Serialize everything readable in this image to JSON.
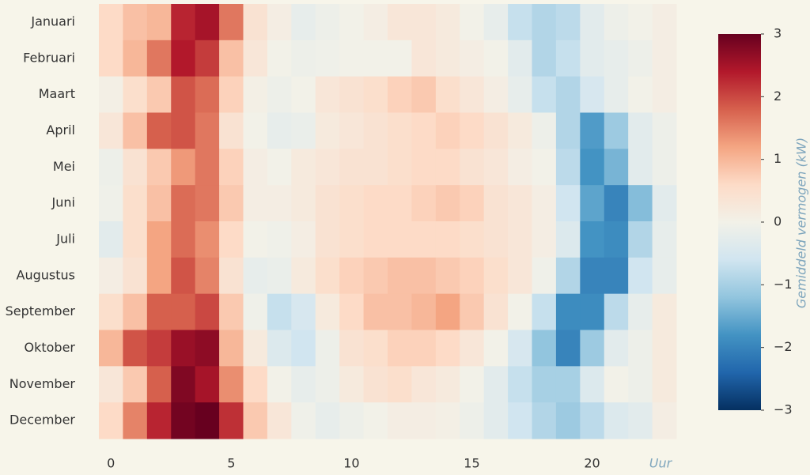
{
  "chart_data": {
    "type": "heatmap",
    "x": [
      0,
      1,
      2,
      3,
      4,
      5,
      6,
      7,
      8,
      9,
      10,
      11,
      12,
      13,
      14,
      15,
      16,
      17,
      18,
      19,
      20,
      21,
      22,
      23
    ],
    "xlim": [
      -0.5,
      23.5
    ],
    "xticks": [
      0,
      5,
      10,
      15,
      20
    ],
    "x_label": "Uur",
    "categories": [
      "Januari",
      "Februari",
      "Maart",
      "April",
      "Mei",
      "Juni",
      "Juli",
      "Augustus",
      "September",
      "Oktober",
      "November",
      "December"
    ],
    "values": [
      [
        0.6,
        0.9,
        1.0,
        2.3,
        2.5,
        1.6,
        0.4,
        0.1,
        -0.2,
        -0.1,
        0.0,
        0.1,
        0.3,
        0.3,
        0.2,
        0.0,
        -0.2,
        -0.7,
        -0.9,
        -0.8,
        -0.3,
        -0.1,
        0.0,
        0.1
      ],
      [
        0.6,
        1.0,
        1.6,
        2.4,
        2.1,
        0.9,
        0.3,
        0.0,
        -0.1,
        -0.05,
        0.0,
        0.0,
        0.0,
        0.3,
        0.2,
        0.1,
        0.0,
        -0.3,
        -0.9,
        -0.7,
        -0.3,
        -0.2,
        -0.1,
        0.1
      ],
      [
        0.05,
        0.5,
        0.8,
        1.9,
        1.7,
        0.7,
        0.05,
        -0.1,
        0.0,
        0.3,
        0.4,
        0.5,
        0.7,
        0.8,
        0.5,
        0.3,
        0.1,
        -0.2,
        -0.7,
        -0.9,
        -0.5,
        -0.2,
        0.0,
        0.1
      ],
      [
        0.3,
        0.9,
        1.8,
        1.9,
        1.6,
        0.4,
        0.0,
        -0.2,
        -0.15,
        0.2,
        0.3,
        0.4,
        0.5,
        0.6,
        0.7,
        0.6,
        0.4,
        0.2,
        -0.1,
        -0.9,
        -1.7,
        -1.1,
        -0.3,
        -0.1
      ],
      [
        -0.1,
        0.4,
        0.8,
        1.3,
        1.6,
        0.7,
        0.1,
        0.0,
        0.2,
        0.3,
        0.4,
        0.4,
        0.5,
        0.6,
        0.6,
        0.4,
        0.3,
        0.1,
        0.0,
        -0.8,
        -1.8,
        -1.4,
        -0.3,
        -0.1
      ],
      [
        -0.05,
        0.5,
        0.9,
        1.7,
        1.6,
        0.8,
        0.1,
        0.1,
        0.2,
        0.4,
        0.5,
        0.6,
        0.6,
        0.7,
        0.8,
        0.7,
        0.4,
        0.3,
        0.1,
        -0.6,
        -1.6,
        -2.0,
        -1.3,
        -0.3
      ],
      [
        -0.3,
        0.5,
        1.2,
        1.7,
        1.4,
        0.6,
        0.0,
        -0.05,
        0.1,
        0.4,
        0.5,
        0.6,
        0.6,
        0.6,
        0.6,
        0.5,
        0.4,
        0.3,
        0.1,
        -0.4,
        -1.8,
        -1.9,
        -0.9,
        -0.2
      ],
      [
        0.1,
        0.4,
        1.2,
        1.9,
        1.5,
        0.4,
        -0.2,
        -0.15,
        0.2,
        0.5,
        0.7,
        0.8,
        0.9,
        0.9,
        0.8,
        0.7,
        0.5,
        0.3,
        -0.05,
        -0.9,
        -2.0,
        -2.0,
        -0.6,
        -0.2
      ],
      [
        0.5,
        0.9,
        1.8,
        1.8,
        2.0,
        0.8,
        -0.05,
        -0.7,
        -0.5,
        0.2,
        0.6,
        0.9,
        0.9,
        1.0,
        1.2,
        0.8,
        0.4,
        0.0,
        -0.7,
        -1.9,
        -1.9,
        -0.8,
        -0.2,
        0.2
      ],
      [
        1.0,
        1.9,
        2.1,
        2.6,
        2.7,
        1.0,
        0.2,
        -0.4,
        -0.6,
        -0.1,
        0.4,
        0.5,
        0.7,
        0.7,
        0.6,
        0.3,
        0.0,
        -0.5,
        -1.2,
        -2.0,
        -1.1,
        -0.3,
        -0.1,
        0.2
      ],
      [
        0.3,
        0.8,
        1.8,
        2.8,
        2.5,
        1.4,
        0.6,
        0.0,
        -0.2,
        -0.1,
        0.2,
        0.4,
        0.5,
        0.3,
        0.2,
        0.0,
        -0.3,
        -0.7,
        -1.0,
        -1.0,
        -0.4,
        0.0,
        -0.1,
        0.2
      ],
      [
        0.6,
        1.5,
        2.3,
        2.9,
        3.0,
        2.2,
        0.8,
        0.3,
        -0.05,
        -0.2,
        -0.1,
        0.0,
        0.1,
        0.1,
        0.05,
        -0.1,
        -0.3,
        -0.6,
        -0.9,
        -1.1,
        -0.8,
        -0.4,
        -0.3,
        0.1
      ]
    ],
    "zlim": [
      -3,
      3
    ],
    "zticks": [
      3,
      2,
      1,
      0,
      {
        "value": -1,
        "label": "−1"
      },
      {
        "value": -2,
        "label": "−2"
      },
      {
        "value": -3,
        "label": "−3"
      }
    ],
    "colorbar_label": "Gemiddeld vermogen (kW)",
    "colorscale": [
      "#053061",
      "#2166ac",
      "#4393c3",
      "#92c5de",
      "#d1e5f0",
      "#f2f1e8",
      "#fddbc7",
      "#f4a582",
      "#d6604d",
      "#b2182b",
      "#67001f"
    ]
  }
}
